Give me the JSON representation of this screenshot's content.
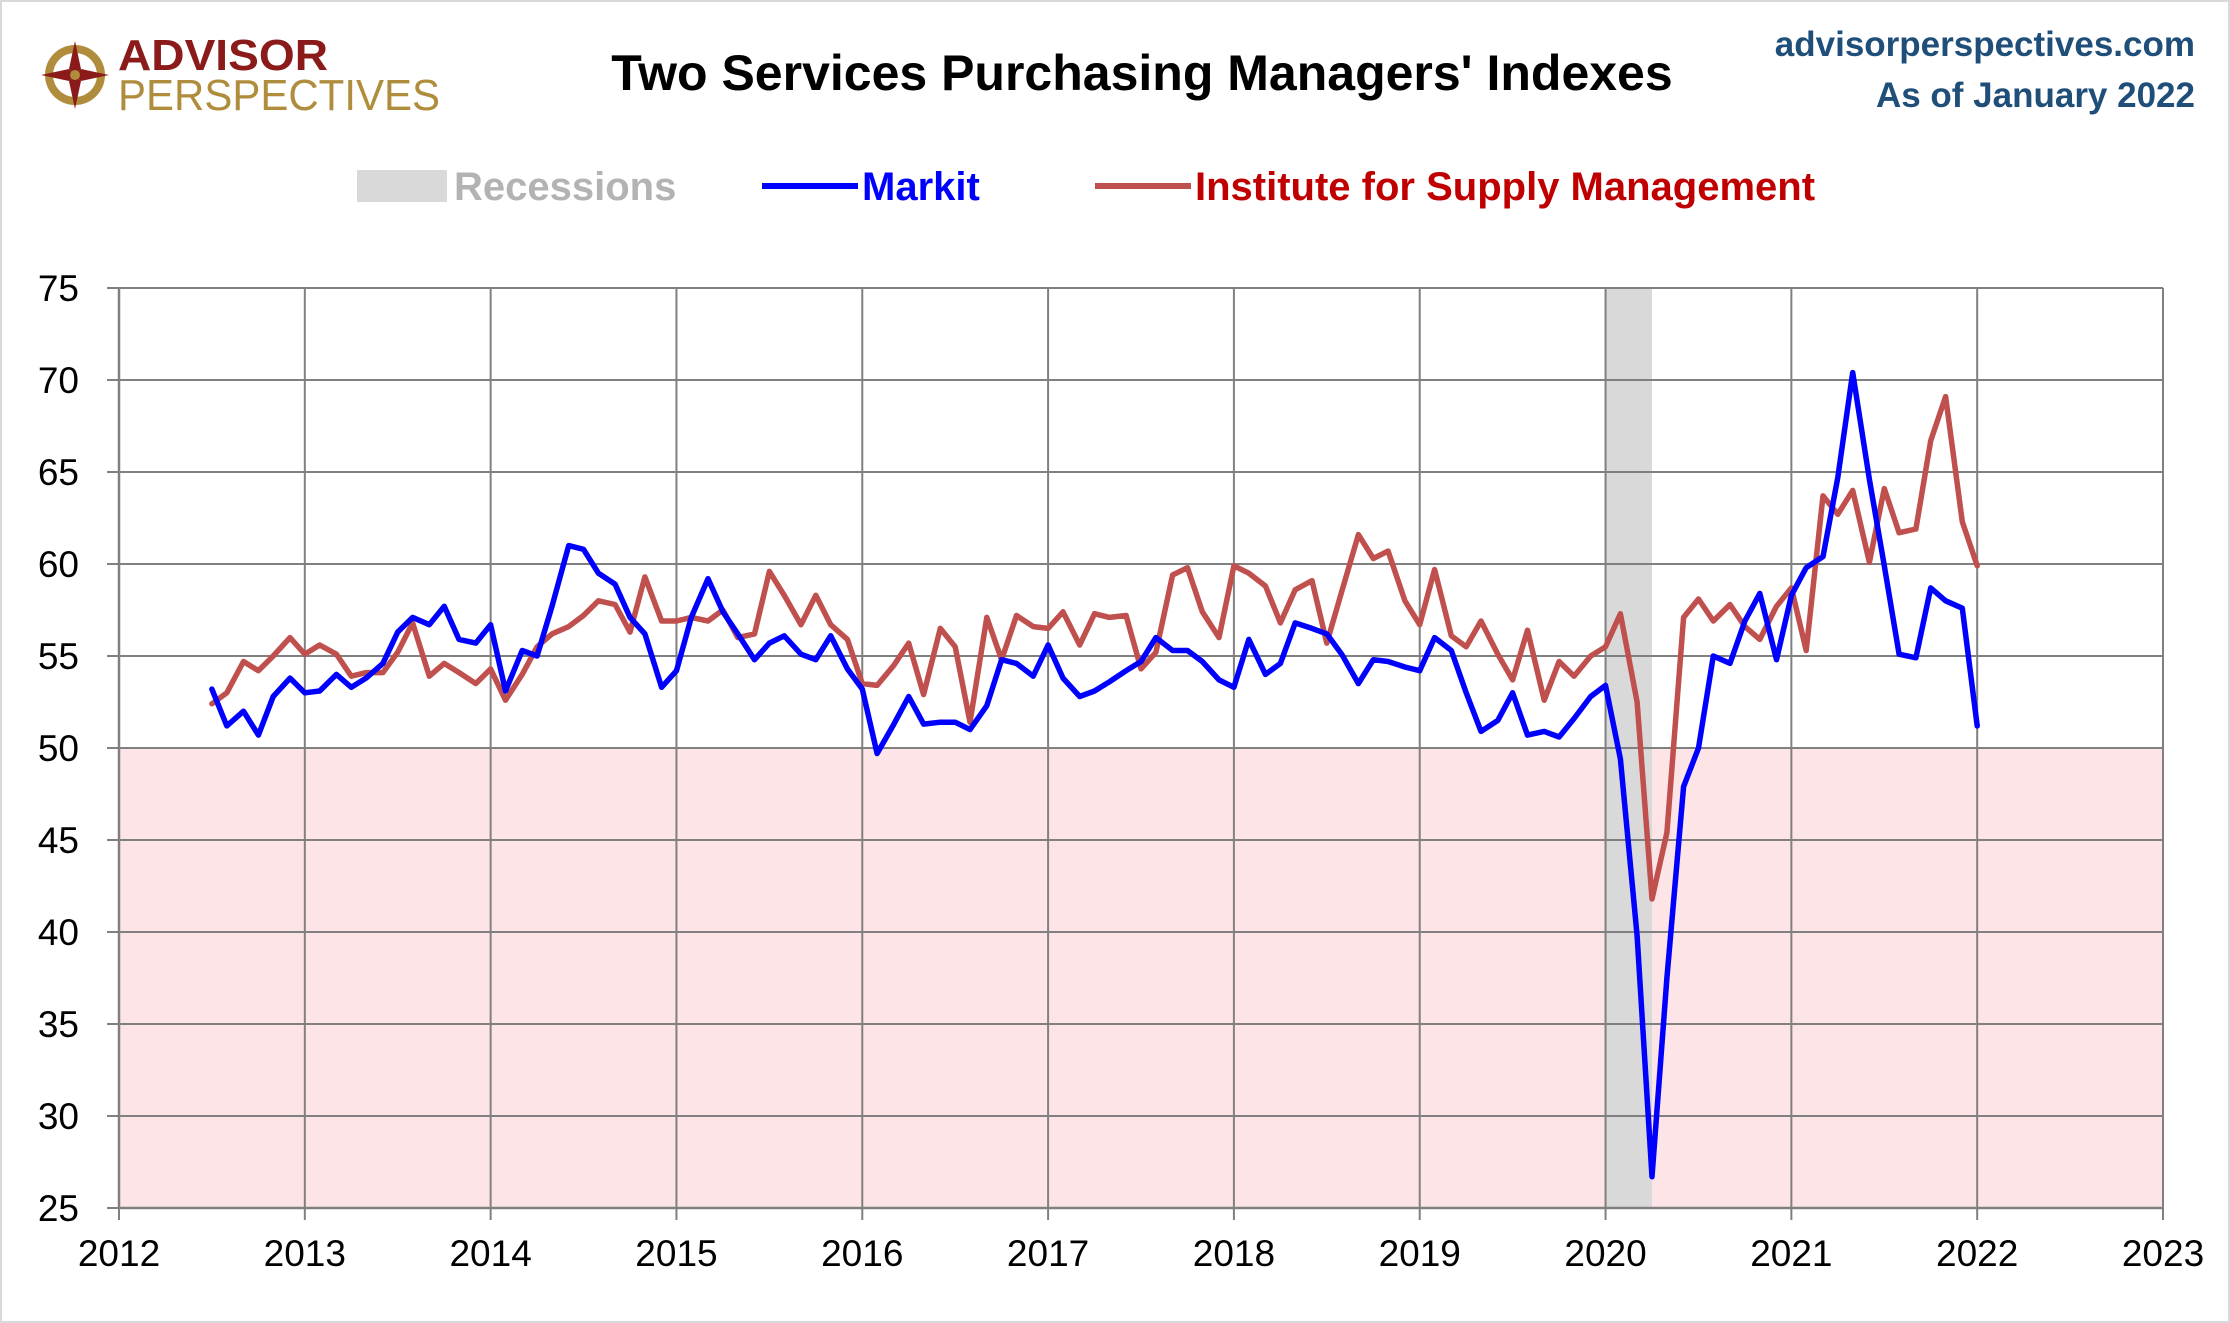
{
  "logo": {
    "line1": "ADVISOR",
    "line2": "PERSPECTIVES"
  },
  "header": {
    "title": "Two Services Purchasing Managers' Indexes",
    "source": "advisorperspectives.com",
    "as_of": "As of January 2022"
  },
  "legend": {
    "recessions": "Recessions",
    "markit": "Markit",
    "ism": "Institute for Supply Management"
  },
  "colors": {
    "markit": "#0000ff",
    "ism": "#c0504d",
    "recession": "#d9d9d9",
    "contraction_zone": "#fde4e6",
    "grid": "#808080",
    "source_text": "#1f4e79"
  },
  "chart_data": {
    "type": "line",
    "title": "Two Services Purchasing Managers' Indexes",
    "xlim": [
      2012,
      2023
    ],
    "ylim": [
      25,
      75
    ],
    "x_ticks": [
      "2012",
      "2013",
      "2014",
      "2015",
      "2016",
      "2017",
      "2018",
      "2019",
      "2020",
      "2021",
      "2022",
      "2023"
    ],
    "y_ticks": [
      "25",
      "30",
      "35",
      "40",
      "45",
      "50",
      "55",
      "60",
      "65",
      "70",
      "75"
    ],
    "grid": true,
    "legend_position": "top",
    "contraction_band": [
      25,
      50
    ],
    "recessions": [
      {
        "start": 2020.0,
        "end": 2020.25
      }
    ],
    "series": [
      {
        "name": "Markit",
        "points": [
          [
            2012.5,
            53.2
          ],
          [
            2012.58,
            51.2
          ],
          [
            2012.67,
            52.0
          ],
          [
            2012.75,
            50.7
          ],
          [
            2012.83,
            52.8
          ],
          [
            2012.92,
            53.8
          ],
          [
            2013.0,
            53.0
          ],
          [
            2013.08,
            53.1
          ],
          [
            2013.17,
            54.0
          ],
          [
            2013.25,
            53.3
          ],
          [
            2013.33,
            53.8
          ],
          [
            2013.42,
            54.6
          ],
          [
            2013.5,
            56.3
          ],
          [
            2013.58,
            57.1
          ],
          [
            2013.67,
            56.7
          ],
          [
            2013.75,
            57.7
          ],
          [
            2013.83,
            55.9
          ],
          [
            2013.92,
            55.7
          ],
          [
            2014.0,
            56.7
          ],
          [
            2014.08,
            53.1
          ],
          [
            2014.17,
            55.3
          ],
          [
            2014.25,
            55.0
          ],
          [
            2014.33,
            57.7
          ],
          [
            2014.42,
            61.0
          ],
          [
            2014.5,
            60.8
          ],
          [
            2014.58,
            59.5
          ],
          [
            2014.67,
            58.9
          ],
          [
            2014.75,
            57.1
          ],
          [
            2014.83,
            56.2
          ],
          [
            2014.92,
            53.3
          ],
          [
            2015.0,
            54.2
          ],
          [
            2015.08,
            57.1
          ],
          [
            2015.17,
            59.2
          ],
          [
            2015.25,
            57.4
          ],
          [
            2015.33,
            56.2
          ],
          [
            2015.42,
            54.8
          ],
          [
            2015.5,
            55.7
          ],
          [
            2015.58,
            56.1
          ],
          [
            2015.67,
            55.1
          ],
          [
            2015.75,
            54.8
          ],
          [
            2015.83,
            56.1
          ],
          [
            2015.92,
            54.3
          ],
          [
            2016.0,
            53.2
          ],
          [
            2016.08,
            49.7
          ],
          [
            2016.17,
            51.3
          ],
          [
            2016.25,
            52.8
          ],
          [
            2016.33,
            51.3
          ],
          [
            2016.42,
            51.4
          ],
          [
            2016.5,
            51.4
          ],
          [
            2016.58,
            51.0
          ],
          [
            2016.67,
            52.3
          ],
          [
            2016.75,
            54.8
          ],
          [
            2016.83,
            54.6
          ],
          [
            2016.92,
            53.9
          ],
          [
            2017.0,
            55.6
          ],
          [
            2017.08,
            53.8
          ],
          [
            2017.17,
            52.8
          ],
          [
            2017.25,
            53.1
          ],
          [
            2017.33,
            53.6
          ],
          [
            2017.42,
            54.2
          ],
          [
            2017.5,
            54.7
          ],
          [
            2017.58,
            56.0
          ],
          [
            2017.67,
            55.3
          ],
          [
            2017.75,
            55.3
          ],
          [
            2017.83,
            54.7
          ],
          [
            2017.92,
            53.7
          ],
          [
            2018.0,
            53.3
          ],
          [
            2018.08,
            55.9
          ],
          [
            2018.17,
            54.0
          ],
          [
            2018.25,
            54.6
          ],
          [
            2018.33,
            56.8
          ],
          [
            2018.42,
            56.5
          ],
          [
            2018.5,
            56.2
          ],
          [
            2018.58,
            55.1
          ],
          [
            2018.67,
            53.5
          ],
          [
            2018.75,
            54.8
          ],
          [
            2018.83,
            54.7
          ],
          [
            2018.92,
            54.4
          ],
          [
            2019.0,
            54.2
          ],
          [
            2019.08,
            56.0
          ],
          [
            2019.17,
            55.3
          ],
          [
            2019.25,
            53.0
          ],
          [
            2019.33,
            50.9
          ],
          [
            2019.42,
            51.5
          ],
          [
            2019.5,
            53.0
          ],
          [
            2019.58,
            50.7
          ],
          [
            2019.67,
            50.9
          ],
          [
            2019.75,
            50.6
          ],
          [
            2019.83,
            51.6
          ],
          [
            2019.92,
            52.8
          ],
          [
            2020.0,
            53.4
          ],
          [
            2020.08,
            49.4
          ],
          [
            2020.17,
            39.8
          ],
          [
            2020.25,
            26.7
          ],
          [
            2020.33,
            37.5
          ],
          [
            2020.42,
            47.9
          ],
          [
            2020.5,
            50.0
          ],
          [
            2020.58,
            55.0
          ],
          [
            2020.67,
            54.6
          ],
          [
            2020.75,
            56.9
          ],
          [
            2020.83,
            58.4
          ],
          [
            2020.92,
            54.8
          ],
          [
            2021.0,
            58.3
          ],
          [
            2021.08,
            59.8
          ],
          [
            2021.17,
            60.4
          ],
          [
            2021.25,
            64.7
          ],
          [
            2021.33,
            70.4
          ],
          [
            2021.42,
            64.6
          ],
          [
            2021.5,
            59.9
          ],
          [
            2021.58,
            55.1
          ],
          [
            2021.67,
            54.9
          ],
          [
            2021.75,
            58.7
          ],
          [
            2021.83,
            58.0
          ],
          [
            2021.92,
            57.6
          ],
          [
            2022.0,
            51.2
          ]
        ]
      },
      {
        "name": "Institute for Supply Management",
        "points": [
          [
            2012.5,
            52.4
          ],
          [
            2012.58,
            53.0
          ],
          [
            2012.67,
            54.7
          ],
          [
            2012.75,
            54.2
          ],
          [
            2012.83,
            55.0
          ],
          [
            2012.92,
            56.0
          ],
          [
            2013.0,
            55.1
          ],
          [
            2013.08,
            55.6
          ],
          [
            2013.17,
            55.1
          ],
          [
            2013.25,
            53.9
          ],
          [
            2013.33,
            54.1
          ],
          [
            2013.42,
            54.1
          ],
          [
            2013.5,
            55.2
          ],
          [
            2013.58,
            56.8
          ],
          [
            2013.67,
            53.9
          ],
          [
            2013.75,
            54.6
          ],
          [
            2013.83,
            54.1
          ],
          [
            2013.92,
            53.5
          ],
          [
            2014.0,
            54.3
          ],
          [
            2014.08,
            52.6
          ],
          [
            2014.17,
            54.0
          ],
          [
            2014.25,
            55.5
          ],
          [
            2014.33,
            56.2
          ],
          [
            2014.42,
            56.6
          ],
          [
            2014.5,
            57.2
          ],
          [
            2014.58,
            58.0
          ],
          [
            2014.67,
            57.8
          ],
          [
            2014.75,
            56.3
          ],
          [
            2014.83,
            59.3
          ],
          [
            2014.92,
            56.9
          ],
          [
            2015.0,
            56.9
          ],
          [
            2015.08,
            57.1
          ],
          [
            2015.17,
            56.9
          ],
          [
            2015.25,
            57.5
          ],
          [
            2015.33,
            56.0
          ],
          [
            2015.42,
            56.2
          ],
          [
            2015.5,
            59.6
          ],
          [
            2015.58,
            58.3
          ],
          [
            2015.67,
            56.7
          ],
          [
            2015.75,
            58.3
          ],
          [
            2015.83,
            56.7
          ],
          [
            2015.92,
            55.9
          ],
          [
            2016.0,
            53.5
          ],
          [
            2016.08,
            53.4
          ],
          [
            2016.17,
            54.5
          ],
          [
            2016.25,
            55.7
          ],
          [
            2016.33,
            52.9
          ],
          [
            2016.42,
            56.5
          ],
          [
            2016.5,
            55.5
          ],
          [
            2016.58,
            51.4
          ],
          [
            2016.67,
            57.1
          ],
          [
            2016.75,
            54.8
          ],
          [
            2016.83,
            57.2
          ],
          [
            2016.92,
            56.6
          ],
          [
            2017.0,
            56.5
          ],
          [
            2017.08,
            57.4
          ],
          [
            2017.17,
            55.6
          ],
          [
            2017.25,
            57.3
          ],
          [
            2017.33,
            57.1
          ],
          [
            2017.42,
            57.2
          ],
          [
            2017.5,
            54.3
          ],
          [
            2017.58,
            55.2
          ],
          [
            2017.67,
            59.4
          ],
          [
            2017.75,
            59.8
          ],
          [
            2017.83,
            57.4
          ],
          [
            2017.92,
            56.0
          ],
          [
            2018.0,
            59.9
          ],
          [
            2018.08,
            59.5
          ],
          [
            2018.17,
            58.8
          ],
          [
            2018.25,
            56.8
          ],
          [
            2018.33,
            58.6
          ],
          [
            2018.42,
            59.1
          ],
          [
            2018.5,
            55.7
          ],
          [
            2018.58,
            58.5
          ],
          [
            2018.67,
            61.6
          ],
          [
            2018.75,
            60.3
          ],
          [
            2018.83,
            60.7
          ],
          [
            2018.92,
            58.0
          ],
          [
            2019.0,
            56.7
          ],
          [
            2019.08,
            59.7
          ],
          [
            2019.17,
            56.1
          ],
          [
            2019.25,
            55.5
          ],
          [
            2019.33,
            56.9
          ],
          [
            2019.42,
            55.1
          ],
          [
            2019.5,
            53.7
          ],
          [
            2019.58,
            56.4
          ],
          [
            2019.67,
            52.6
          ],
          [
            2019.75,
            54.7
          ],
          [
            2019.83,
            53.9
          ],
          [
            2019.92,
            55.0
          ],
          [
            2020.0,
            55.5
          ],
          [
            2020.08,
            57.3
          ],
          [
            2020.17,
            52.5
          ],
          [
            2020.25,
            41.8
          ],
          [
            2020.33,
            45.4
          ],
          [
            2020.42,
            57.1
          ],
          [
            2020.5,
            58.1
          ],
          [
            2020.58,
            56.9
          ],
          [
            2020.67,
            57.8
          ],
          [
            2020.75,
            56.6
          ],
          [
            2020.83,
            55.9
          ],
          [
            2020.92,
            57.7
          ],
          [
            2021.0,
            58.7
          ],
          [
            2021.08,
            55.3
          ],
          [
            2021.17,
            63.7
          ],
          [
            2021.25,
            62.7
          ],
          [
            2021.33,
            64.0
          ],
          [
            2021.42,
            60.1
          ],
          [
            2021.5,
            64.1
          ],
          [
            2021.58,
            61.7
          ],
          [
            2021.67,
            61.9
          ],
          [
            2021.75,
            66.7
          ],
          [
            2021.83,
            69.1
          ],
          [
            2021.92,
            62.3
          ],
          [
            2022.0,
            59.9
          ]
        ]
      }
    ]
  }
}
